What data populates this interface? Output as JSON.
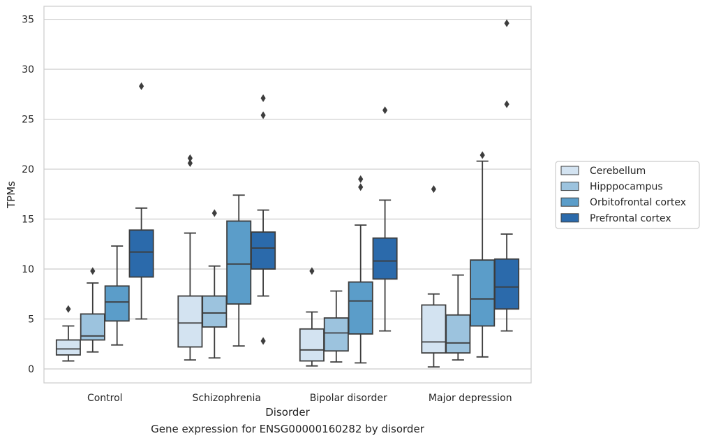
{
  "chart_data": {
    "type": "box",
    "xlabel": "Disorder",
    "ylabel": "TPMs",
    "caption": "Gene expression for ENSG00000160282 by disorder",
    "ylim": [
      -1.4,
      36.3
    ],
    "yticks": [
      0,
      5,
      10,
      15,
      20,
      25,
      30,
      35
    ],
    "grid": "horizontal",
    "legend_position": "right",
    "categories": [
      "Control",
      "Schizophrenia",
      "Bipolar disorder",
      "Major depression"
    ],
    "series": [
      {
        "name": "Cerebellum",
        "color": "#d3e3f1",
        "boxes": [
          {
            "whislo": 0.8,
            "q1": 1.4,
            "med": 2.0,
            "q3": 2.9,
            "whishi": 4.3,
            "fliers": [
              6.0
            ]
          },
          {
            "whislo": 0.9,
            "q1": 2.2,
            "med": 4.6,
            "q3": 7.3,
            "whishi": 13.6,
            "fliers": [
              20.6,
              21.1
            ]
          },
          {
            "whislo": 0.3,
            "q1": 0.8,
            "med": 1.9,
            "q3": 4.0,
            "whishi": 5.7,
            "fliers": [
              9.8
            ]
          },
          {
            "whislo": 0.2,
            "q1": 1.6,
            "med": 2.7,
            "q3": 6.4,
            "whishi": 7.5,
            "fliers": [
              18.0
            ]
          }
        ]
      },
      {
        "name": "Hipppocampus",
        "color": "#9cc3de",
        "boxes": [
          {
            "whislo": 1.7,
            "q1": 2.9,
            "med": 3.3,
            "q3": 5.5,
            "whishi": 8.6,
            "fliers": [
              9.8
            ]
          },
          {
            "whislo": 1.1,
            "q1": 4.2,
            "med": 5.6,
            "q3": 7.3,
            "whishi": 10.3,
            "fliers": [
              15.6
            ]
          },
          {
            "whislo": 0.7,
            "q1": 1.8,
            "med": 3.6,
            "q3": 5.1,
            "whishi": 7.8,
            "fliers": []
          },
          {
            "whislo": 0.9,
            "q1": 1.6,
            "med": 2.6,
            "q3": 5.4,
            "whishi": 9.4,
            "fliers": []
          }
        ]
      },
      {
        "name": "Orbitofrontal cortex",
        "color": "#5b9dc9",
        "boxes": [
          {
            "whislo": 2.4,
            "q1": 4.8,
            "med": 6.7,
            "q3": 8.3,
            "whishi": 12.3,
            "fliers": []
          },
          {
            "whislo": 2.3,
            "q1": 6.5,
            "med": 10.5,
            "q3": 14.8,
            "whishi": 17.4,
            "fliers": []
          },
          {
            "whislo": 0.6,
            "q1": 3.5,
            "med": 6.8,
            "q3": 8.7,
            "whishi": 14.4,
            "fliers": [
              18.2,
              19.0
            ]
          },
          {
            "whislo": 1.2,
            "q1": 4.3,
            "med": 7.0,
            "q3": 10.9,
            "whishi": 20.8,
            "fliers": [
              21.4
            ]
          }
        ]
      },
      {
        "name": "Prefrontal cortex",
        "color": "#2b6aab",
        "boxes": [
          {
            "whislo": 5.0,
            "q1": 9.2,
            "med": 11.7,
            "q3": 13.9,
            "whishi": 16.1,
            "fliers": [
              28.3
            ]
          },
          {
            "whislo": 7.3,
            "q1": 10.0,
            "med": 12.1,
            "q3": 13.7,
            "whishi": 15.9,
            "fliers": [
              2.8,
              25.4,
              27.1
            ]
          },
          {
            "whislo": 3.8,
            "q1": 9.0,
            "med": 10.8,
            "q3": 13.1,
            "whishi": 16.9,
            "fliers": [
              25.9
            ]
          },
          {
            "whislo": 3.8,
            "q1": 6.0,
            "med": 8.2,
            "q3": 11.0,
            "whishi": 13.5,
            "fliers": [
              26.5,
              34.6
            ]
          }
        ]
      }
    ]
  }
}
